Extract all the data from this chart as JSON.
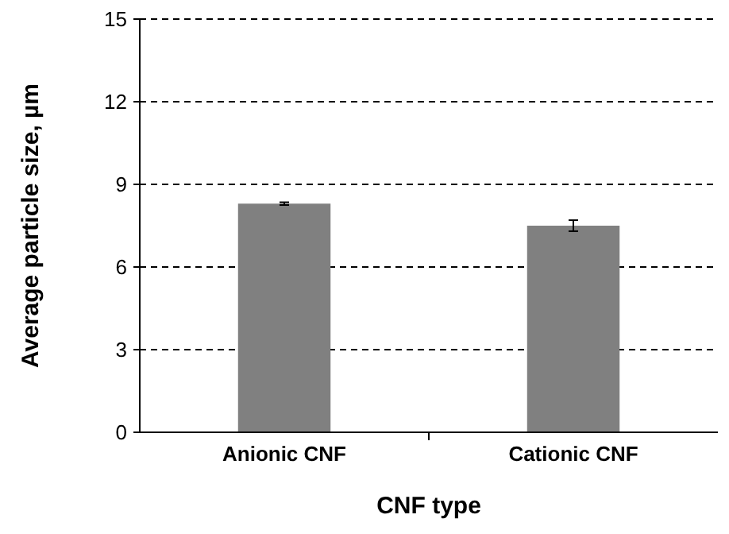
{
  "chart_data": {
    "type": "bar",
    "xlabel": "CNF type",
    "ylabel": "Average particle size, µm",
    "categories": [
      "Anionic CNF",
      "Cationic CNF"
    ],
    "values": [
      8.3,
      7.5
    ],
    "errors": [
      0.05,
      0.2
    ],
    "color": "#808080",
    "ylim": [
      0,
      15
    ],
    "yticks": [
      0,
      3,
      6,
      9,
      12,
      15
    ],
    "grid": "y"
  }
}
